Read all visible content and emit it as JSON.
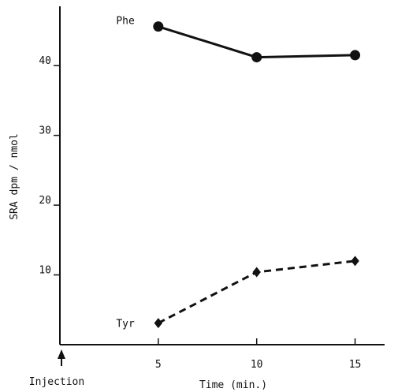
{
  "chart_data": {
    "type": "line",
    "xlabel": "Time (min.)",
    "ylabel": "SRA dpm / nmol",
    "xlim": [
      0,
      16.5
    ],
    "ylim": [
      0,
      48.5
    ],
    "x_ticks": [
      5,
      10,
      15
    ],
    "y_ticks": [
      10,
      20,
      30,
      40
    ],
    "annotation": "Injection",
    "series": [
      {
        "name": "Phe",
        "x": [
          5,
          10,
          15
        ],
        "y": [
          45.6,
          41.2,
          41.5
        ],
        "marker": "circle",
        "line": "solid"
      },
      {
        "name": "Tyr",
        "x": [
          5,
          10,
          15
        ],
        "y": [
          3.1,
          10.4,
          12.0
        ],
        "marker": "diamond",
        "line": "dashed"
      }
    ]
  }
}
